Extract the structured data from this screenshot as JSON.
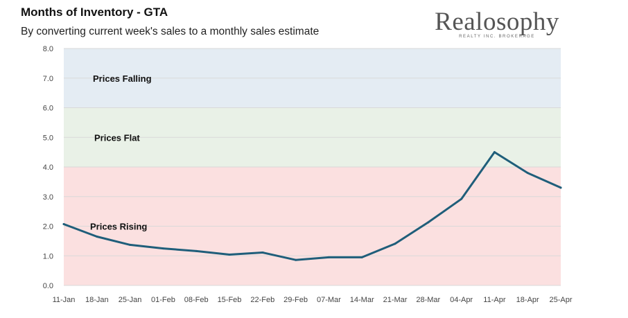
{
  "header": {
    "title": "Months of Inventory - GTA",
    "subtitle": "By converting current week's sales to a monthly sales estimate"
  },
  "logo": {
    "word": "Realosophy",
    "tagline": "REALTY INC. BROKERAGE"
  },
  "colors": {
    "line": "#1f5e7a",
    "band_falling": "#e4ecf3",
    "band_flat": "#e9f1e7",
    "band_rising": "#fbe0e0",
    "grid": "#d9d9d9"
  },
  "chart_data": {
    "type": "line",
    "title": "Months of Inventory - GTA",
    "subtitle": "By converting current week's sales to a monthly sales estimate",
    "xlabel": "",
    "ylabel": "",
    "ylim": [
      0,
      8
    ],
    "yticks": [
      "0.0",
      "1.0",
      "2.0",
      "3.0",
      "4.0",
      "5.0",
      "6.0",
      "7.0",
      "8.0"
    ],
    "grid": true,
    "categories": [
      "11-Jan",
      "18-Jan",
      "25-Jan",
      "01-Feb",
      "08-Feb",
      "15-Feb",
      "22-Feb",
      "29-Feb",
      "07-Mar",
      "14-Mar",
      "21-Mar",
      "28-Mar",
      "04-Apr",
      "11-Apr",
      "18-Apr",
      "25-Apr"
    ],
    "series": [
      {
        "values": [
          2.07,
          1.65,
          1.37,
          1.25,
          1.16,
          1.04,
          1.11,
          0.86,
          0.95,
          0.95,
          1.41,
          2.13,
          2.92,
          4.5,
          3.8,
          3.3
        ]
      }
    ],
    "bands": [
      {
        "label": "Prices Falling",
        "from": 6,
        "to": 8
      },
      {
        "label": "Prices Flat",
        "from": 4,
        "to": 6
      },
      {
        "label": "Prices Rising",
        "from": 0,
        "to": 4
      }
    ]
  }
}
